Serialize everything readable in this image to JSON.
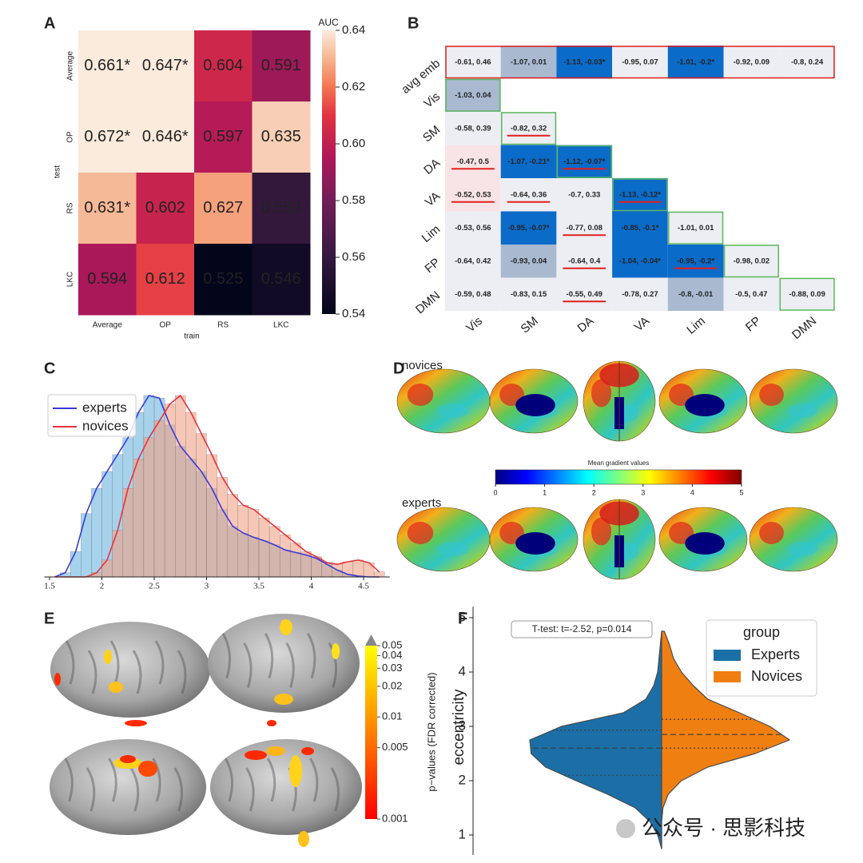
{
  "chart_data": [
    {
      "type": "heatmap",
      "panel": "A",
      "x_categories": [
        "Average",
        "OP",
        "RS",
        "LKC"
      ],
      "y_categories": [
        "Average",
        "OP",
        "RS",
        "LKC"
      ],
      "x_label": "train",
      "y_label": "test",
      "values": [
        [
          0.661,
          0.647,
          0.604,
          0.591
        ],
        [
          0.672,
          0.646,
          0.597,
          0.635
        ],
        [
          0.631,
          0.602,
          0.627,
          0.559
        ],
        [
          0.594,
          0.612,
          0.525,
          0.546
        ]
      ],
      "value_labels": [
        [
          "0.661*",
          "0.647*",
          "0.604",
          "0.591"
        ],
        [
          "0.672*",
          "0.646*",
          "0.597",
          "0.635"
        ],
        [
          "0.631*",
          "0.602",
          "0.627",
          "0.559"
        ],
        [
          "0.594",
          "0.612",
          "0.525",
          "0.546"
        ]
      ],
      "colorbar_label": "AUC",
      "clim": [
        0.54,
        0.64
      ],
      "cticks": [
        0.54,
        0.56,
        0.58,
        {
          "value": 0.6,
          "label": "0.60"
        },
        0.62,
        0.64
      ]
    },
    {
      "type": "matrix",
      "panel": "B",
      "rows": [
        "avg emb",
        "Vis",
        "SM",
        "DA",
        "VA",
        "Lim",
        "FP",
        "DMN"
      ],
      "columns": [
        "Vis",
        "SM",
        "DA",
        "VA",
        "Lim",
        "FP",
        "DMN"
      ],
      "cells": [
        [
          "-0.61, 0.46",
          "-1.07, 0.01",
          "-1.13, -0.03*",
          "-0.95, 0.07",
          "-1.01, -0.2*",
          "-0.92, 0.09",
          "-0.8, 0.24"
        ],
        [
          "-1.03, 0.04"
        ],
        [
          "-0.58, 0.39",
          "-0.82, 0.32"
        ],
        [
          "-0.47, 0.5",
          "-1.07, -0.21*",
          "-1.12, -0.07*"
        ],
        [
          "-0.52, 0.53",
          "-0.64, 0.36",
          "-0.7, 0.33",
          "-1.13, -0.12*"
        ],
        [
          "-0.53, 0.56",
          "-0.95, -0.07*",
          "-0.77, 0.08",
          "-0.85, -0.1*",
          "-1.01, 0.01"
        ],
        [
          "-0.64, 0.42",
          "-0.93, 0.04",
          "-0.64, 0.4",
          "-1.04, -0.04*",
          "-0.95, -0.2*",
          "-0.98, 0.02"
        ],
        [
          "-0.59, 0.48",
          "-0.83, 0.15",
          "-0.55, 0.49",
          "-0.78, 0.27",
          "-0.8, -0.01",
          "-0.5, 0.47",
          "-0.88, 0.09"
        ]
      ],
      "cell_colors": [
        [
          "#eceef3",
          "#a8b9d0",
          "#0b6bc8",
          "#eceef3",
          "#0b6bc8",
          "#eceef3",
          "#eceef3"
        ],
        [
          "#a8b9d0"
        ],
        [
          "#eceef3",
          "#eceef3"
        ],
        [
          "#f8e4e6",
          "#0b6bc8",
          "#0b6bc8"
        ],
        [
          "#f8e4e6",
          "#eceef3",
          "#eceef3",
          "#0b6bc8"
        ],
        [
          "#eceef3",
          "#0b6bc8",
          "#eceef3",
          "#0b6bc8",
          "#eceef3"
        ],
        [
          "#eceef3",
          "#a8b9d0",
          "#eceef3",
          "#0b6bc8",
          "#0b6bc8",
          "#eceef3"
        ],
        [
          "#eceef3",
          "#eceef3",
          "#eceef3",
          "#eceef3",
          "#a8b9d0",
          "#eceef3",
          "#eceef3"
        ]
      ],
      "underlined": [
        [
          false,
          false,
          false,
          false,
          false,
          false,
          false
        ],
        [
          false
        ],
        [
          false,
          true
        ],
        [
          true,
          false,
          true
        ],
        [
          true,
          true,
          false,
          true
        ],
        [
          false,
          false,
          true,
          false,
          false
        ],
        [
          false,
          false,
          true,
          false,
          true,
          false
        ],
        [
          false,
          false,
          true,
          false,
          false,
          false,
          false
        ]
      ]
    },
    {
      "type": "histogram",
      "panel": "C",
      "bins": [
        1.5,
        1.6,
        1.7,
        1.8,
        1.9,
        2.0,
        2.1,
        2.2,
        2.3,
        2.4,
        2.5,
        2.6,
        2.7,
        2.8,
        2.9,
        3.0,
        3.1,
        3.2,
        3.3,
        3.4,
        3.5,
        3.6,
        3.7,
        3.8,
        3.9,
        4.0,
        4.1,
        4.2,
        4.3,
        4.4,
        4.5,
        4.6,
        4.7
      ],
      "series": [
        {
          "name": "experts",
          "color": "#6db4e0",
          "line_color": "#3a3ad8",
          "values": [
            0,
            5,
            30,
            75,
            105,
            125,
            145,
            165,
            195,
            215,
            212,
            180,
            155,
            140,
            125,
            105,
            80,
            60,
            52,
            47,
            43,
            38,
            32,
            29,
            26,
            22,
            15,
            8,
            3,
            1,
            0,
            0
          ]
        },
        {
          "name": "novices",
          "color": "#f0a286",
          "line_color": "#e8323c",
          "values": [
            0,
            0,
            0,
            0,
            5,
            20,
            55,
            105,
            140,
            165,
            185,
            205,
            215,
            195,
            170,
            145,
            118,
            98,
            85,
            80,
            70,
            60,
            50,
            40,
            30,
            24,
            17,
            15,
            18,
            20,
            17,
            6
          ]
        }
      ],
      "xlim": [
        1.45,
        4.75
      ],
      "xticks": [
        1.5,
        2,
        2.5,
        3,
        3.5,
        4,
        4.5
      ],
      "legend": "upper left"
    },
    {
      "type": "image",
      "panel": "D",
      "labels": [
        "novices",
        "experts"
      ],
      "colorbar_label": "Mean gradient values",
      "clim": [
        0,
        5
      ],
      "cticks": [
        0,
        1,
        2,
        3,
        4,
        5
      ],
      "colormap": "jet"
    },
    {
      "type": "image",
      "panel": "E",
      "colorbar_label": "p−values (FDR corrected)",
      "clim": [
        0.001,
        0.05
      ],
      "log": true,
      "cticks": [
        0.05,
        0.04,
        0.03,
        0.02,
        0.01,
        0.005,
        0.001
      ],
      "colormap": "autumn"
    },
    {
      "type": "violin",
      "panel": "F",
      "y_label": "eccentricity",
      "annotation": "T-test: t=-2.52, p=0.014",
      "legend_title": "group",
      "legend": "upper right",
      "ylim": [
        0.75,
        5.2
      ],
      "yticks": [
        1,
        2,
        3,
        4,
        5
      ],
      "y_grid": [
        0.75,
        1.0,
        1.25,
        1.5,
        1.75,
        2.0,
        2.25,
        2.5,
        2.75,
        3.0,
        3.25,
        3.5,
        3.75,
        4.0,
        4.25,
        4.5,
        4.75
      ],
      "series": [
        {
          "name": "Experts",
          "color": "#1b6fa6",
          "side": "left",
          "density": [
            0,
            0.03,
            0.09,
            0.2,
            0.41,
            0.65,
            0.88,
            0.99,
            1.0,
            0.76,
            0.29,
            0.12,
            0.06,
            0.03,
            0.02,
            0.01,
            0
          ],
          "quartiles": [
            2.1,
            2.6,
            2.93
          ]
        },
        {
          "name": "Novices",
          "color": "#f07f12",
          "side": "right",
          "density": [
            0,
            0,
            0,
            0.01,
            0.05,
            0.15,
            0.35,
            0.71,
            0.97,
            0.82,
            0.59,
            0.35,
            0.24,
            0.15,
            0.09,
            0.06,
            0.02
          ],
          "quartiles": [
            2.6,
            2.85,
            3.13
          ]
        }
      ]
    }
  ],
  "watermark": "公众号 · 思影科技"
}
